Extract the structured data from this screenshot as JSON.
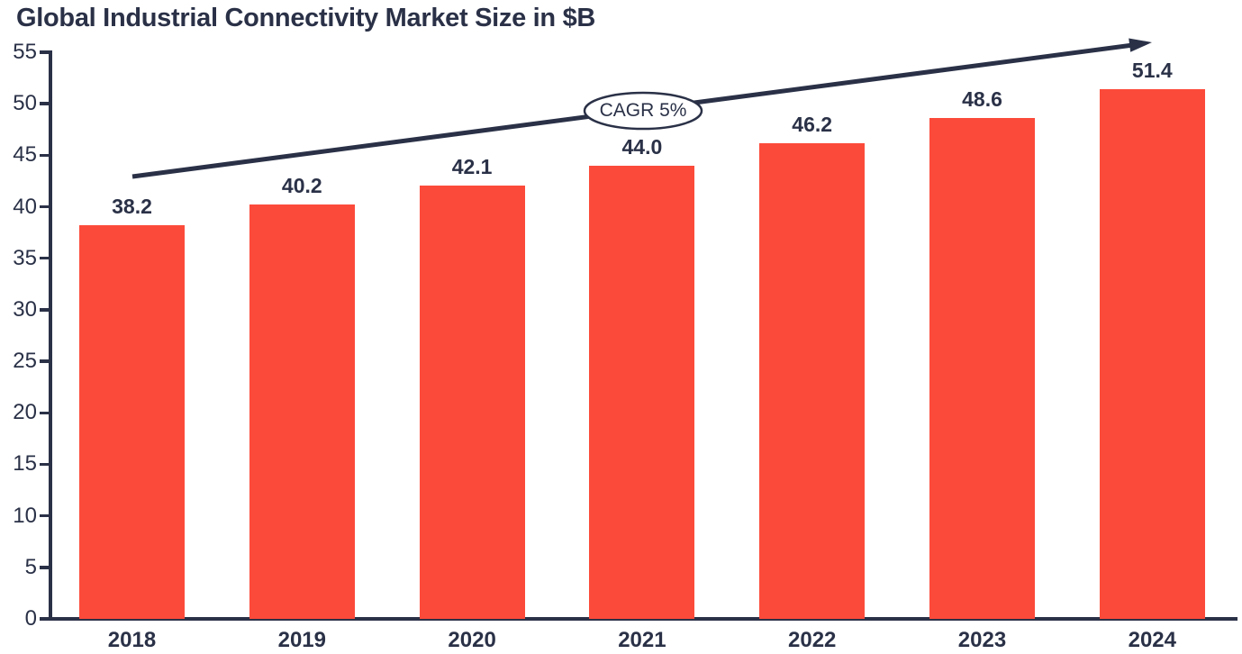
{
  "chart_data": {
    "type": "bar",
    "title": "Global Industrial Connectivity Market Size in $B",
    "categories": [
      "2018",
      "2019",
      "2020",
      "2021",
      "2022",
      "2023",
      "2024"
    ],
    "values": [
      38.2,
      40.2,
      42.1,
      44.0,
      46.2,
      48.6,
      51.4
    ],
    "value_labels": [
      "38.2",
      "40.2",
      "42.1",
      "44.0",
      "46.2",
      "48.6",
      "51.4"
    ],
    "xlabel": "",
    "ylabel": "",
    "ylim": [
      0,
      55
    ],
    "yticks": [
      0,
      5,
      10,
      15,
      20,
      25,
      30,
      35,
      40,
      45,
      50,
      55
    ],
    "grid": false,
    "legend": "none",
    "annotation": {
      "label": "CAGR 5%",
      "shape": "ellipse-on-trend-arrow"
    },
    "colors": {
      "bar": "#FC4A3A",
      "axis": "#2A3147",
      "text": "#2A3147",
      "arrow": "#2A3147",
      "annotation_fill": "#FFFFFF"
    }
  }
}
